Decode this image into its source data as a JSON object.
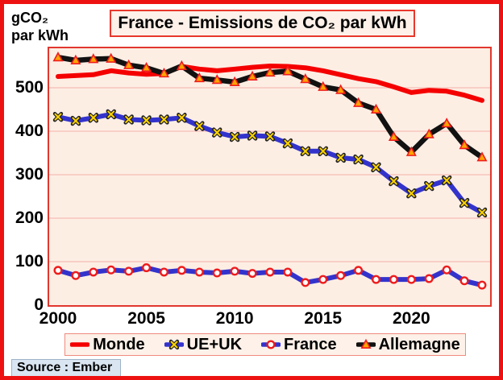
{
  "header": {
    "y_unit_line1": "gCO₂",
    "y_unit_line2": "par kWh",
    "title": "France - Emissions de CO₂ par kWh"
  },
  "footer": {
    "source": "Source : Ember"
  },
  "colors": {
    "frame_red": "#ee1111",
    "plot_background": "#fdeee4",
    "gridline": "#f5bdb5",
    "monde_red": "#f50000",
    "eu_blue": "#3333cc",
    "allemagne_black": "#111111",
    "marker_yellow": "#ffd400",
    "marker_orange": "#ffa500",
    "marker_edge_red": "#ee1c1c",
    "source_badge_bg": "#d9e5f1"
  },
  "chart_data": {
    "type": "line",
    "title": "France - Emissions de CO₂ par kWh",
    "ylabel": "gCO₂ par kWh",
    "xlabel": "",
    "grid": "horizontal",
    "legend_position": "bottom",
    "ylim": [
      0,
      590
    ],
    "x": [
      2000,
      2001,
      2002,
      2003,
      2004,
      2005,
      2006,
      2007,
      2008,
      2009,
      2010,
      2011,
      2012,
      2013,
      2014,
      2015,
      2016,
      2017,
      2018,
      2019,
      2020,
      2021,
      2022,
      2023,
      2024
    ],
    "x_ticks": [
      2000,
      2005,
      2010,
      2015,
      2020
    ],
    "y_ticks": [
      0,
      100,
      200,
      300,
      400,
      500
    ],
    "series": [
      {
        "name": "Monde",
        "color": "#f50000",
        "marker": "none",
        "values": [
          526,
          528,
          530,
          539,
          534,
          531,
          533,
          549,
          543,
          539,
          543,
          547,
          550,
          549,
          546,
          539,
          530,
          521,
          514,
          502,
          489,
          494,
          492,
          483,
          471
        ]
      },
      {
        "name": "UE+UK",
        "color": "#3333cc",
        "marker": "x",
        "marker_color": "#ffd400",
        "marker_edge": "#222222",
        "values": [
          433,
          424,
          431,
          439,
          427,
          425,
          427,
          431,
          412,
          397,
          387,
          390,
          388,
          372,
          354,
          354,
          339,
          335,
          317,
          285,
          257,
          274,
          287,
          235,
          213
        ]
      },
      {
        "name": "France",
        "color": "#3333cc",
        "marker": "circle",
        "marker_color": "#ffffff",
        "marker_edge": "#ee1c1c",
        "values": [
          80,
          68,
          76,
          81,
          78,
          86,
          76,
          80,
          76,
          74,
          78,
          73,
          76,
          76,
          52,
          59,
          68,
          80,
          59,
          59,
          59,
          61,
          81,
          56,
          46
        ]
      },
      {
        "name": "Allemagne",
        "color": "#111111",
        "marker": "triangle",
        "marker_color": "#ffa500",
        "marker_edge": "#ee1c1c",
        "values": [
          570,
          563,
          566,
          567,
          552,
          546,
          533,
          550,
          522,
          518,
          513,
          526,
          535,
          538,
          520,
          502,
          495,
          465,
          450,
          387,
          352,
          393,
          418,
          368,
          340
        ]
      }
    ]
  }
}
